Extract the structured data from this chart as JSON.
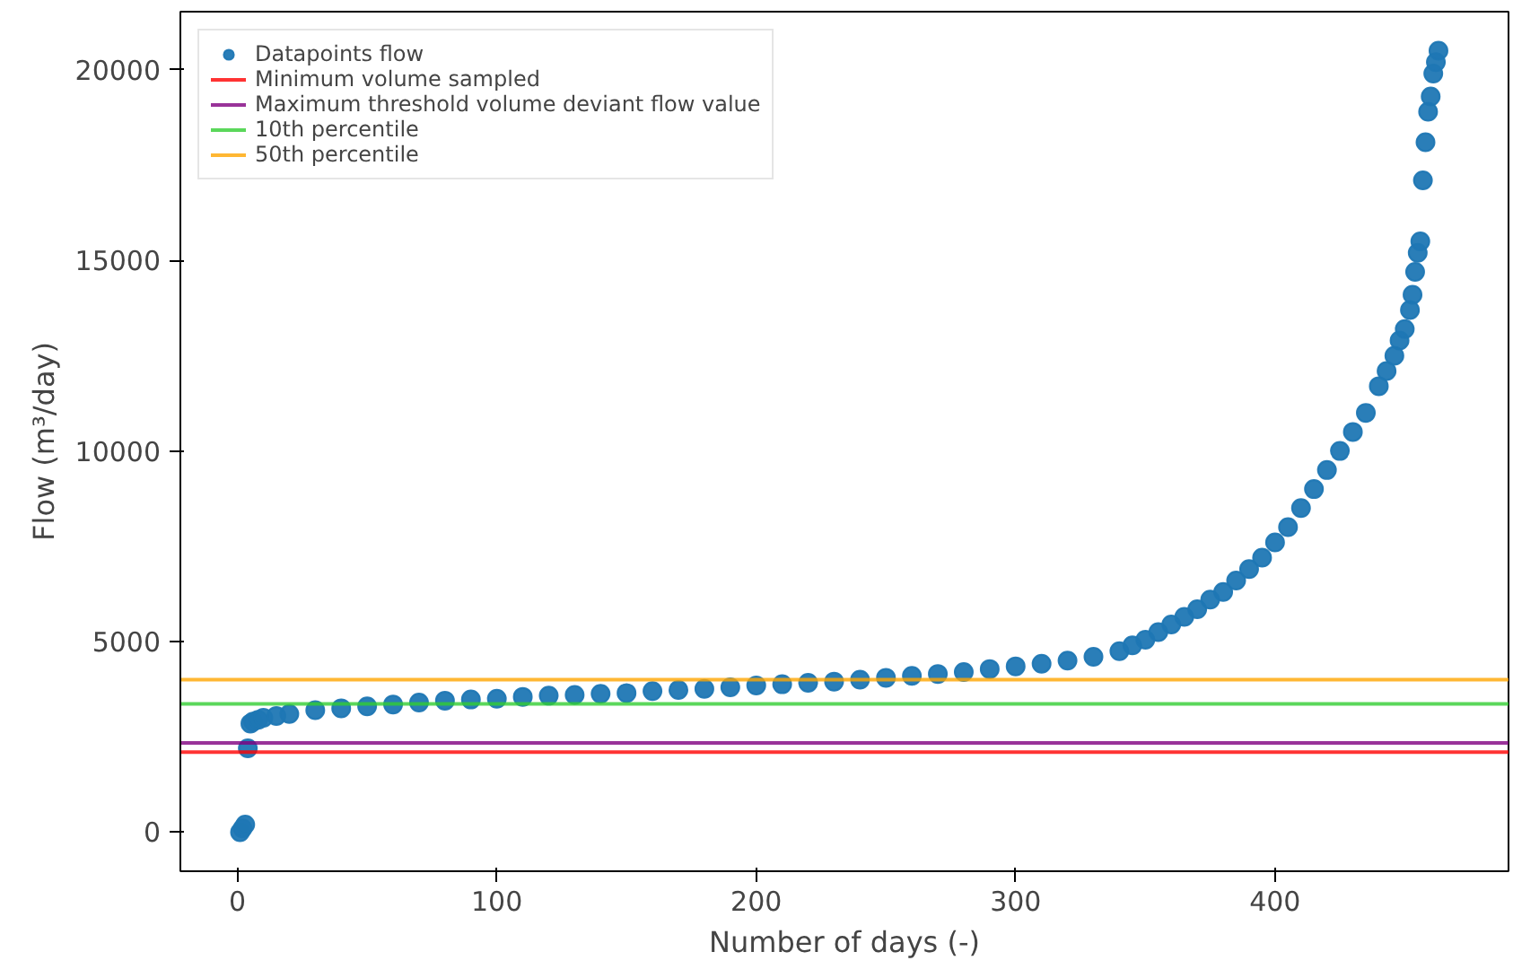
{
  "chart_data": {
    "type": "scatter",
    "xlabel": "Number of days (-)",
    "ylabel": "Flow (m³/day)",
    "xlim": [
      -22,
      490
    ],
    "ylim": [
      -1025,
      21525
    ],
    "xticks": [
      0,
      100,
      200,
      300,
      400
    ],
    "yticks": [
      0,
      5000,
      10000,
      15000,
      20000
    ],
    "grid": false,
    "legend": "top left",
    "marker": "circle",
    "series": [
      {
        "name": "Datapoints flow",
        "color": "#1f77b4",
        "x": [
          1,
          2,
          3,
          4,
          5,
          6,
          8,
          10,
          15,
          20,
          30,
          40,
          50,
          60,
          70,
          80,
          90,
          100,
          110,
          120,
          130,
          140,
          150,
          160,
          170,
          180,
          190,
          200,
          210,
          220,
          230,
          240,
          250,
          260,
          270,
          280,
          290,
          300,
          310,
          320,
          330,
          340,
          345,
          350,
          355,
          360,
          365,
          370,
          375,
          380,
          385,
          390,
          395,
          400,
          405,
          410,
          415,
          420,
          425,
          430,
          435,
          440,
          443,
          446,
          448,
          450,
          452,
          453,
          454,
          455,
          456,
          457,
          458,
          459,
          460,
          461,
          462,
          463
        ],
        "values": [
          0,
          100,
          200,
          2200,
          2850,
          2900,
          2950,
          3000,
          3050,
          3100,
          3200,
          3250,
          3300,
          3350,
          3400,
          3450,
          3480,
          3500,
          3550,
          3580,
          3600,
          3630,
          3650,
          3700,
          3730,
          3760,
          3800,
          3850,
          3880,
          3920,
          3950,
          4000,
          4050,
          4100,
          4150,
          4200,
          4280,
          4350,
          4420,
          4500,
          4600,
          4750,
          4900,
          5050,
          5250,
          5450,
          5650,
          5850,
          6100,
          6300,
          6600,
          6900,
          7200,
          7600,
          8000,
          8500,
          9000,
          9500,
          10000,
          10500,
          11000,
          11700,
          12100,
          12500,
          12900,
          13200,
          13700,
          14100,
          14700,
          15200,
          15500,
          17100,
          18100,
          18900,
          19300,
          19900,
          20200,
          20500
        ]
      }
    ],
    "ref_lines": [
      {
        "axis": "y",
        "value": 2100,
        "label": "Minimum volume sampled",
        "color": "#ff0000"
      },
      {
        "axis": "y",
        "value": 2340,
        "label": "Maximum threshold volume deviant flow value",
        "color": "#800080"
      },
      {
        "axis": "y",
        "value": 3365,
        "label": "10th percentile",
        "color": "#32cd32"
      },
      {
        "axis": "y",
        "value": 4000,
        "label": "50th percentile",
        "color": "#ffa500"
      }
    ]
  }
}
